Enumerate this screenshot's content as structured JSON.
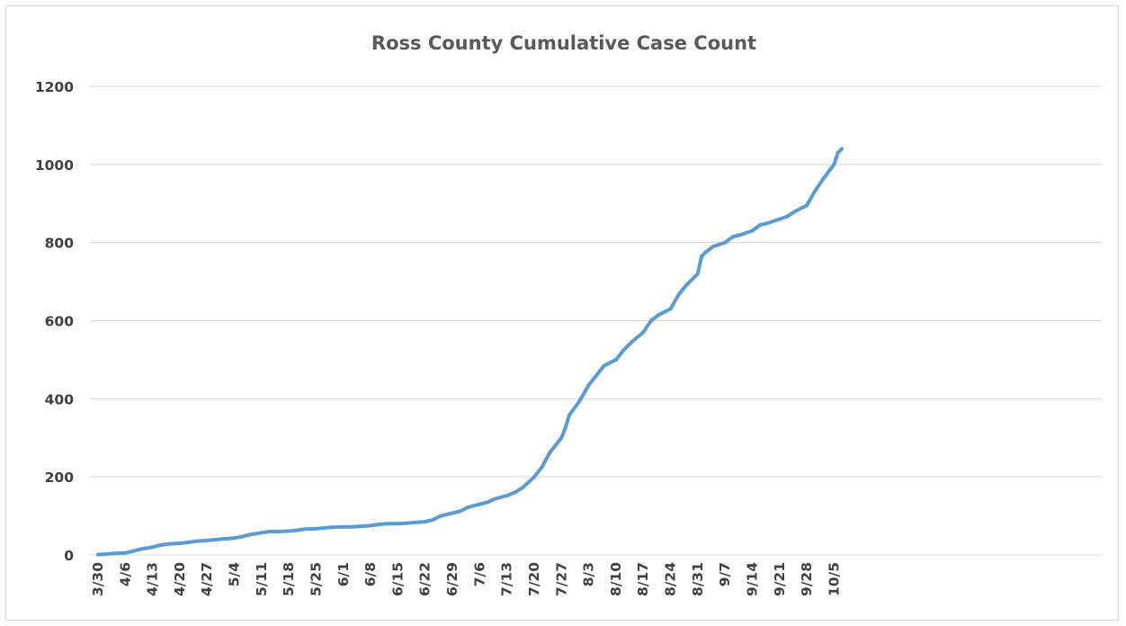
{
  "chart_data": {
    "type": "line",
    "title": "Ross County Cumulative Case Count",
    "xlabel": "",
    "ylabel": "",
    "ylim": [
      0,
      1200
    ],
    "yticks": [
      0,
      200,
      400,
      600,
      800,
      1000,
      1200
    ],
    "xticks": [
      "3/30",
      "4/6",
      "4/13",
      "4/20",
      "4/27",
      "5/4",
      "5/11",
      "5/18",
      "5/25",
      "6/1",
      "6/8",
      "6/15",
      "6/22",
      "6/29",
      "7/6",
      "7/13",
      "7/20",
      "7/27",
      "8/3",
      "8/10",
      "8/17",
      "8/24",
      "8/31",
      "9/7",
      "9/14",
      "9/21",
      "9/28",
      "10/5"
    ],
    "grid": true,
    "legend": "none",
    "series_color": "#5b9bd5",
    "series": [
      {
        "x": [
          "3/30",
          "4/1",
          "4/3",
          "4/6",
          "4/8",
          "4/10",
          "4/13",
          "4/15",
          "4/17",
          "4/20",
          "4/22",
          "4/24",
          "4/27",
          "4/29",
          "5/1",
          "5/4",
          "5/6",
          "5/8",
          "5/11",
          "5/13",
          "5/15",
          "5/18",
          "5/20",
          "5/22",
          "5/25",
          "5/27",
          "5/29",
          "6/1",
          "6/3",
          "6/5",
          "6/8",
          "6/10",
          "6/12",
          "6/15",
          "6/17",
          "6/19",
          "6/22",
          "6/24",
          "6/26",
          "6/29",
          "7/1",
          "7/3",
          "7/6",
          "7/8",
          "7/10",
          "7/13",
          "7/15",
          "7/17",
          "7/20",
          "7/22",
          "7/24",
          "7/27",
          "7/28",
          "7/29",
          "7/31",
          "8/1",
          "8/3",
          "8/5",
          "8/7",
          "8/10",
          "8/12",
          "8/14",
          "8/17",
          "8/19",
          "8/21",
          "8/24",
          "8/26",
          "8/28",
          "8/31",
          "9/1",
          "9/2",
          "9/4",
          "9/7",
          "9/9",
          "9/11",
          "9/14",
          "9/16",
          "9/18",
          "9/21",
          "9/23",
          "9/25",
          "9/28",
          "9/30",
          "10/2",
          "10/5",
          "10/6",
          "10/7"
        ],
        "values": [
          1,
          2,
          4,
          5,
          10,
          15,
          20,
          25,
          28,
          30,
          32,
          35,
          37,
          39,
          41,
          43,
          47,
          52,
          57,
          60,
          60,
          61,
          63,
          66,
          67,
          69,
          71,
          72,
          72,
          73,
          75,
          78,
          80,
          80,
          81,
          83,
          85,
          90,
          100,
          107,
          112,
          122,
          130,
          135,
          144,
          152,
          160,
          172,
          200,
          225,
          262,
          300,
          325,
          358,
          385,
          400,
          435,
          460,
          485,
          500,
          525,
          545,
          570,
          600,
          615,
          630,
          665,
          690,
          720,
          765,
          775,
          790,
          800,
          815,
          820,
          830,
          845,
          850,
          860,
          867,
          880,
          895,
          930,
          960,
          1000,
          1030,
          1040
        ]
      }
    ]
  }
}
